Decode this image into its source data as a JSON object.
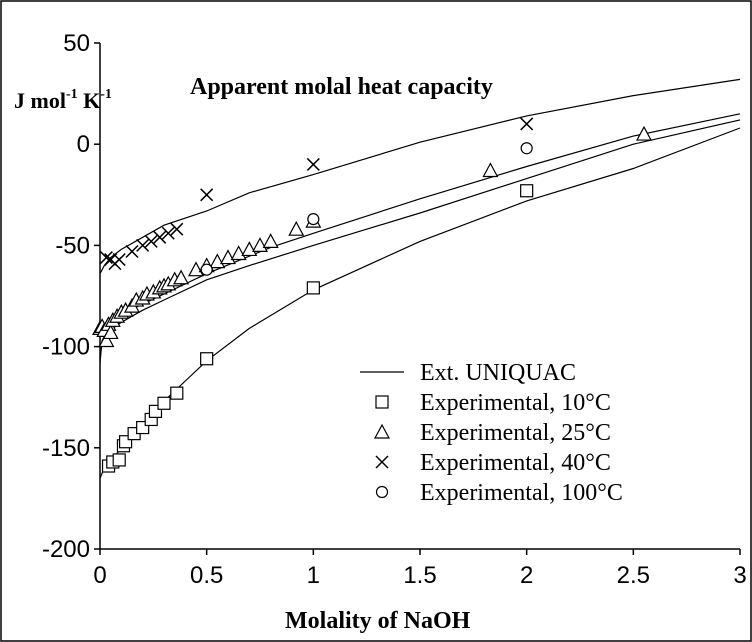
{
  "chart_data": {
    "type": "scatter",
    "title": "Apparent molal heat capacity",
    "ylabel_main": "J mol",
    "ylabel_exp1": "-1",
    "ylabel_mid": " K",
    "ylabel_exp2": "-1",
    "xlabel": "Molality of NaOH",
    "xlim": [
      0,
      3
    ],
    "ylim": [
      -200,
      50
    ],
    "xticks": [
      "0",
      "0.5",
      "1",
      "1.5",
      "2",
      "2.5",
      "3"
    ],
    "yticks": [
      "50",
      "0",
      "-50",
      "-100",
      "-150",
      "-200"
    ],
    "legend": {
      "placement": "bottom-right",
      "entries": [
        "Ext. UNIQUAC",
        "Experimental, 10°C",
        "Experimental, 25°C",
        "Experimental, 40°C",
        "Experimental, 100°C"
      ]
    },
    "lines": [
      {
        "name": "Ext. UNIQUAC",
        "x": [
          0,
          0.02,
          0.05,
          0.1,
          0.2,
          0.3,
          0.4,
          0.5,
          0.7,
          1.0,
          1.5,
          2.0,
          2.5,
          3.0
        ],
        "y": [
          -165,
          -160,
          -157,
          -150,
          -138,
          -127,
          -117,
          -107,
          -91,
          -72,
          -48,
          -28,
          -12,
          8
        ]
      },
      {
        "name": "Ext. UNIQUAC",
        "x": [
          0,
          0.01,
          0.03,
          0.06,
          0.1,
          0.2,
          0.3,
          0.5,
          0.7,
          1.0,
          1.5,
          2.0,
          2.5,
          3.0
        ],
        "y": [
          -108,
          -97,
          -93,
          -91,
          -88,
          -82,
          -77,
          -67,
          -60,
          -50,
          -34,
          -17,
          0,
          12
        ]
      },
      {
        "name": "Ext. UNIQUAC",
        "x": [
          0,
          0.02,
          0.05,
          0.1,
          0.2,
          0.3,
          0.5,
          0.8,
          1.0,
          1.5,
          2.0,
          2.5,
          3.0
        ],
        "y": [
          -95,
          -91,
          -88,
          -84,
          -79,
          -74,
          -64,
          -51,
          -44,
          -27,
          -11,
          4,
          15
        ]
      },
      {
        "name": "Ext. UNIQUAC",
        "x": [
          0,
          0.02,
          0.05,
          0.1,
          0.2,
          0.3,
          0.5,
          0.7,
          1.0,
          1.5,
          2.0,
          2.5,
          3.0
        ],
        "y": [
          -64,
          -60,
          -56,
          -52,
          -46,
          -40,
          -33,
          -24,
          -15,
          1,
          14,
          24,
          32
        ]
      }
    ],
    "series": [
      {
        "name": "Experimental, 10°C",
        "marker": "square",
        "x": [
          0.04,
          0.06,
          0.09,
          0.11,
          0.12,
          0.16,
          0.2,
          0.24,
          0.26,
          0.3,
          0.36,
          0.5,
          1.0,
          2.0
        ],
        "y": [
          -159,
          -157,
          -156,
          -149,
          -147,
          -143,
          -140,
          -136,
          -132,
          -128,
          -123,
          -106,
          -71,
          -23
        ]
      },
      {
        "name": "Experimental, 25°C",
        "marker": "triangle",
        "x": [
          0.0,
          0.01,
          0.02,
          0.03,
          0.04,
          0.05,
          0.06,
          0.08,
          0.1,
          0.12,
          0.15,
          0.17,
          0.2,
          0.22,
          0.25,
          0.28,
          0.3,
          0.32,
          0.35,
          0.38,
          0.45,
          0.5,
          0.55,
          0.6,
          0.65,
          0.7,
          0.75,
          0.8,
          0.92,
          1.0,
          1.83,
          2.55
        ],
        "y": [
          -91,
          -90,
          -92,
          -97,
          -89,
          -93,
          -87,
          -85,
          -83,
          -82,
          -80,
          -77,
          -76,
          -74,
          -73,
          -71,
          -70,
          -69,
          -67,
          -66,
          -62,
          -60,
          -58,
          -56,
          -54,
          -52,
          -50,
          -48,
          -42,
          -38,
          -13,
          5
        ]
      },
      {
        "name": "Experimental, 40°C",
        "marker": "x",
        "x": [
          0.03,
          0.05,
          0.07,
          0.09,
          0.15,
          0.2,
          0.24,
          0.28,
          0.32,
          0.36,
          0.5,
          1.0,
          2.0
        ],
        "y": [
          -56,
          -57,
          -59,
          -57,
          -53,
          -50,
          -48,
          -46,
          -44,
          -42,
          -25,
          -10,
          10
        ]
      },
      {
        "name": "Experimental, 100°C",
        "marker": "circle",
        "x": [
          0.5,
          1.0,
          2.0
        ],
        "y": [
          -62,
          -37,
          -2
        ]
      }
    ]
  }
}
